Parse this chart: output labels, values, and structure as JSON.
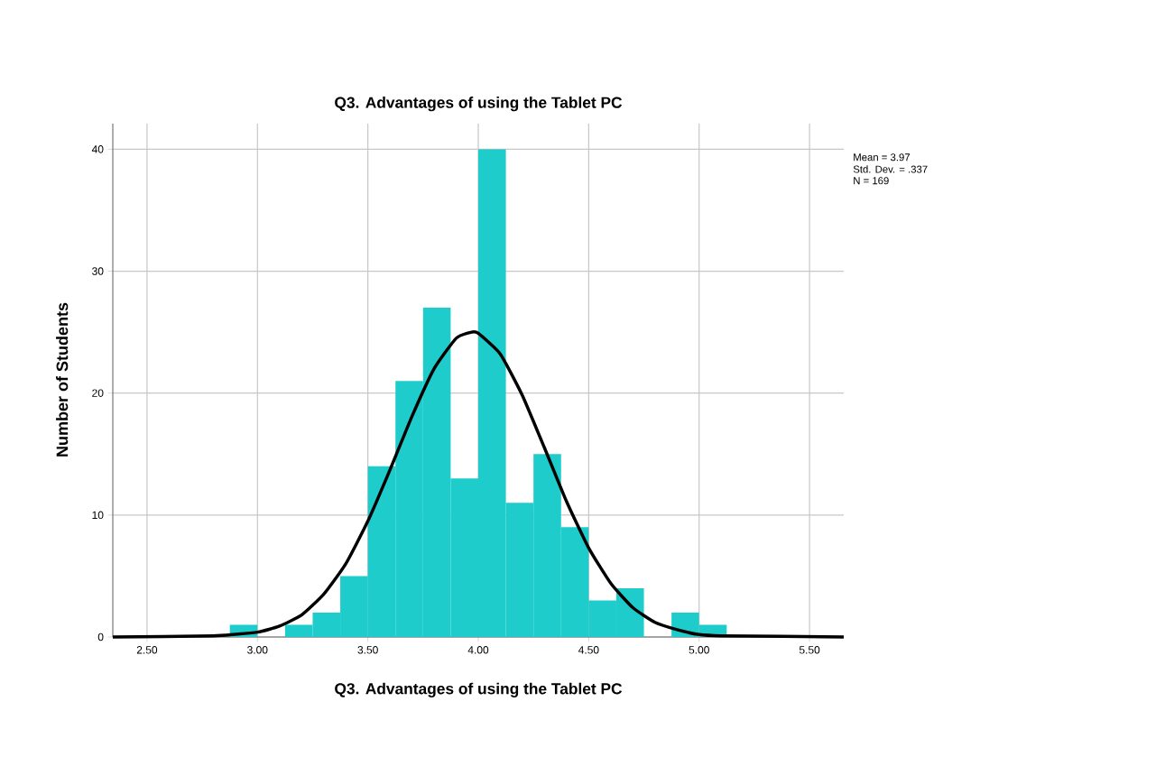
{
  "chart_data": {
    "type": "histogram",
    "title": "Q3. Advantages of using the Tablet PC",
    "xlabel": "Q3. Advantages of using the Tablet PC",
    "ylabel": "Number of Students",
    "annotations": [
      "Mean = 3.97",
      "Std. Dev. = .337",
      "N = 169"
    ],
    "xlim": [
      2.345,
      5.655
    ],
    "ylim": [
      0,
      42.1
    ],
    "xticks": [
      {
        "value": 2.5,
        "label": "2.50"
      },
      {
        "value": 3.0,
        "label": "3.00"
      },
      {
        "value": 3.5,
        "label": "3.50"
      },
      {
        "value": 4.0,
        "label": "4.00"
      },
      {
        "value": 4.5,
        "label": "4.50"
      },
      {
        "value": 5.0,
        "label": "5.00"
      },
      {
        "value": 5.5,
        "label": "5.50"
      }
    ],
    "yticks": [
      0,
      10,
      20,
      30,
      40
    ],
    "grid": true,
    "marker": "none",
    "series": [
      {
        "color": "#1fcccc",
        "bins": [
          2.875,
          3.0,
          3.125,
          3.25,
          3.375,
          3.5,
          3.625,
          3.75,
          3.875,
          4.0,
          4.125,
          4.25,
          4.375,
          4.5,
          4.625,
          4.75,
          4.875,
          5.0,
          5.125
        ],
        "values": [
          1,
          0,
          1,
          2,
          5,
          14,
          21,
          27,
          13,
          40,
          11,
          15,
          9,
          3,
          4,
          0,
          2,
          1
        ]
      },
      {
        "type": "line",
        "color": "#000000",
        "line_style": "solid",
        "x": [
          2.345,
          2.8,
          3.0,
          3.1,
          3.2,
          3.3,
          3.4,
          3.5,
          3.6,
          3.7,
          3.8,
          3.9,
          3.97,
          4.0,
          4.1,
          4.2,
          4.3,
          4.4,
          4.5,
          4.6,
          4.7,
          4.8,
          4.9,
          5.0,
          5.1,
          5.655
        ],
        "values": [
          0,
          0.1,
          0.4,
          0.9,
          1.8,
          3.5,
          6.0,
          9.5,
          13.7,
          18.1,
          22.0,
          24.5,
          25.0,
          24.9,
          23.2,
          19.8,
          15.5,
          11.1,
          7.3,
          4.4,
          2.4,
          1.2,
          0.6,
          0.2,
          0.1,
          0
        ]
      }
    ]
  }
}
